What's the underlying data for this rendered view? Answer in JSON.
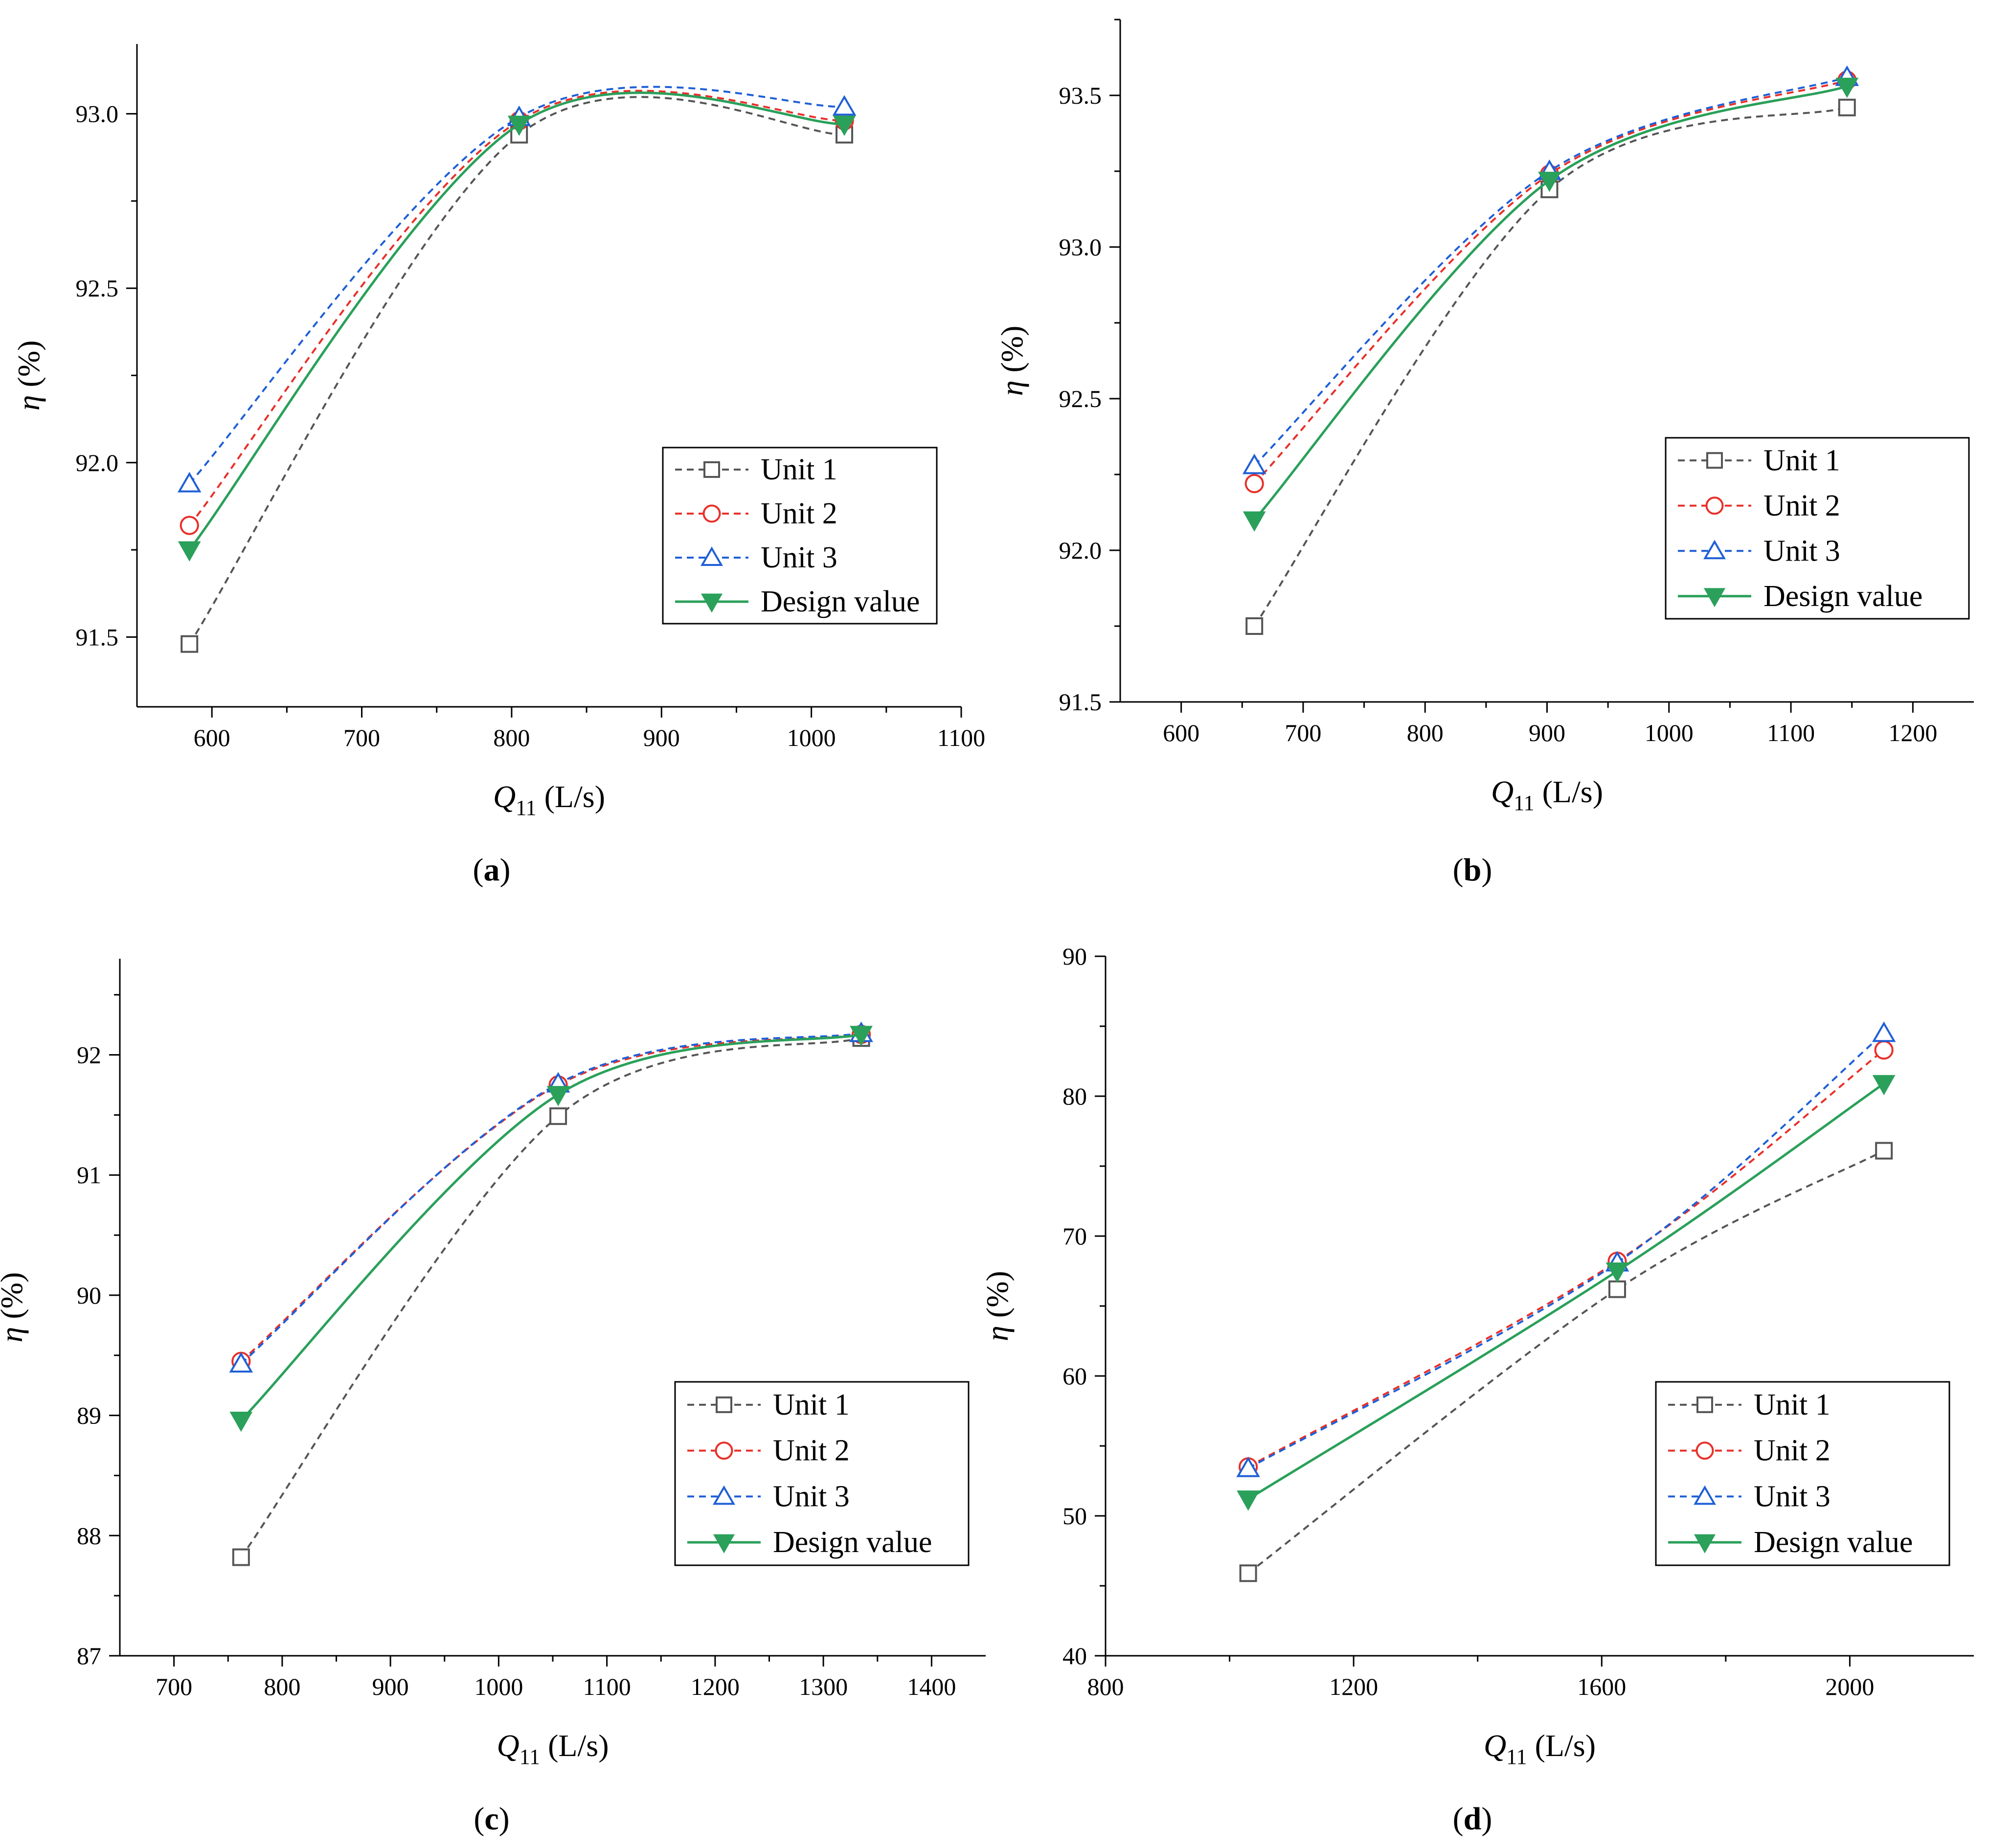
{
  "chart_data": [
    {
      "type": "line",
      "panel_label": "a",
      "xlabel": "Q11 (L/s)",
      "xlabel_main": "Q",
      "xlabel_sub": "11",
      "xlabel_unit": "(L/s)",
      "ylabel": "η (%)",
      "ylabel_symbol": "η",
      "ylabel_unit": "(%)",
      "xlim": [
        550,
        1100
      ],
      "ylim": [
        91.3,
        93.2
      ],
      "xticks": [
        600,
        700,
        800,
        900,
        1000,
        1100
      ],
      "yticks": [
        91.5,
        92.0,
        92.5,
        93.0
      ],
      "ytick_labels": [
        "91.5",
        "92.0",
        "92.5",
        "93.0"
      ],
      "legend_position": "center-right",
      "series": [
        {
          "name": "Unit 1",
          "color": "#555555",
          "marker": "square",
          "dash": "dashed",
          "x": [
            585,
            805,
            1022
          ],
          "y": [
            91.48,
            92.94,
            92.94
          ]
        },
        {
          "name": "Unit 2",
          "color": "#e8302a",
          "marker": "circle",
          "dash": "dashed",
          "x": [
            585,
            805,
            1022
          ],
          "y": [
            91.82,
            92.98,
            92.98
          ]
        },
        {
          "name": "Unit 3",
          "color": "#1f5fd6",
          "marker": "triangle-up",
          "dash": "dashed",
          "x": [
            585,
            805,
            1022
          ],
          "y": [
            91.94,
            92.99,
            93.02
          ]
        },
        {
          "name": "Design value",
          "color": "#2aa05a",
          "marker": "triangle-down",
          "dash": "solid",
          "x": [
            585,
            805,
            1022
          ],
          "y": [
            91.75,
            92.97,
            92.97
          ]
        }
      ]
    },
    {
      "type": "line",
      "panel_label": "b",
      "xlabel": "Q11 (L/s)",
      "xlabel_main": "Q",
      "xlabel_sub": "11",
      "xlabel_unit": "(L/s)",
      "ylabel": "η (%)",
      "ylabel_symbol": "η",
      "ylabel_unit": "(%)",
      "xlim": [
        550,
        1250
      ],
      "ylim": [
        91.5,
        93.75
      ],
      "xticks": [
        600,
        700,
        800,
        900,
        1000,
        1100,
        1200
      ],
      "yticks": [
        91.5,
        92.0,
        92.5,
        93.0,
        93.5
      ],
      "ytick_labels": [
        "91.5",
        "92.0",
        "92.5",
        "93.0",
        "93.5"
      ],
      "legend_position": "center-right",
      "series": [
        {
          "name": "Unit 1",
          "color": "#555555",
          "marker": "square",
          "dash": "dashed",
          "x": [
            660,
            902,
            1146
          ],
          "y": [
            91.75,
            93.19,
            93.46
          ]
        },
        {
          "name": "Unit 2",
          "color": "#e8302a",
          "marker": "circle",
          "dash": "dashed",
          "x": [
            660,
            902,
            1146
          ],
          "y": [
            92.22,
            93.24,
            93.55
          ]
        },
        {
          "name": "Unit 3",
          "color": "#1f5fd6",
          "marker": "triangle-up",
          "dash": "dashed",
          "x": [
            660,
            902,
            1146
          ],
          "y": [
            92.28,
            93.25,
            93.56
          ]
        },
        {
          "name": "Design value",
          "color": "#2aa05a",
          "marker": "triangle-down",
          "dash": "solid",
          "x": [
            660,
            902,
            1146
          ],
          "y": [
            92.1,
            93.22,
            93.53
          ]
        }
      ]
    },
    {
      "type": "line",
      "panel_label": "c",
      "xlabel": "Q11 (L/s)",
      "xlabel_main": "Q",
      "xlabel_sub": "11",
      "xlabel_unit": "(L/s)",
      "ylabel": "η (%)",
      "ylabel_symbol": "η",
      "ylabel_unit": "(%)",
      "xlim": [
        650,
        1450
      ],
      "ylim": [
        87,
        92.8
      ],
      "xticks": [
        700,
        800,
        900,
        1000,
        1100,
        1200,
        1300,
        1400
      ],
      "yticks": [
        87,
        88,
        89,
        90,
        91,
        92
      ],
      "ytick_labels": [
        "87",
        "88",
        "89",
        "90",
        "91",
        "92"
      ],
      "legend_position": "bottom-right",
      "series": [
        {
          "name": "Unit 1",
          "color": "#555555",
          "marker": "square",
          "dash": "dashed",
          "x": [
            762,
            1055,
            1335
          ],
          "y": [
            87.82,
            91.49,
            92.14
          ]
        },
        {
          "name": "Unit 2",
          "color": "#e8302a",
          "marker": "circle",
          "dash": "dashed",
          "x": [
            762,
            1055,
            1335
          ],
          "y": [
            89.45,
            91.75,
            92.17
          ]
        },
        {
          "name": "Unit 3",
          "color": "#1f5fd6",
          "marker": "triangle-up",
          "dash": "dashed",
          "x": [
            762,
            1055,
            1335
          ],
          "y": [
            89.43,
            91.76,
            92.18
          ]
        },
        {
          "name": "Design value",
          "color": "#2aa05a",
          "marker": "triangle-down",
          "dash": "solid",
          "x": [
            762,
            1055,
            1335
          ],
          "y": [
            88.96,
            91.67,
            92.17
          ]
        }
      ]
    },
    {
      "type": "line",
      "panel_label": "d",
      "xlabel": "Q11 (L/s)",
      "xlabel_main": "Q",
      "xlabel_sub": "11",
      "xlabel_unit": "(L/s)",
      "ylabel": "η (%)",
      "ylabel_symbol": "η",
      "ylabel_unit": "(%)",
      "xlim": [
        800,
        2200
      ],
      "ylim": [
        40,
        90
      ],
      "xticks": [
        800,
        1200,
        1600,
        2000
      ],
      "yticks": [
        40,
        50,
        60,
        70,
        80,
        90
      ],
      "ytick_labels": [
        "40",
        "50",
        "60",
        "70",
        "80",
        "90"
      ],
      "legend_position": "bottom-right",
      "series": [
        {
          "name": "Unit 1",
          "color": "#555555",
          "marker": "square",
          "dash": "dashed",
          "x": [
            1030,
            1625,
            2055
          ],
          "y": [
            45.9,
            66.2,
            76.1
          ]
        },
        {
          "name": "Unit 2",
          "color": "#e8302a",
          "marker": "circle",
          "dash": "dashed",
          "x": [
            1030,
            1625,
            2055
          ],
          "y": [
            53.5,
            68.2,
            83.3
          ]
        },
        {
          "name": "Unit 3",
          "color": "#1f5fd6",
          "marker": "triangle-up",
          "dash": "dashed",
          "x": [
            1030,
            1625,
            2055
          ],
          "y": [
            53.4,
            68.1,
            84.5
          ]
        },
        {
          "name": "Design value",
          "color": "#2aa05a",
          "marker": "triangle-down",
          "dash": "solid",
          "x": [
            1030,
            1625,
            2055
          ],
          "y": [
            51.2,
            67.5,
            80.9
          ]
        }
      ]
    }
  ]
}
